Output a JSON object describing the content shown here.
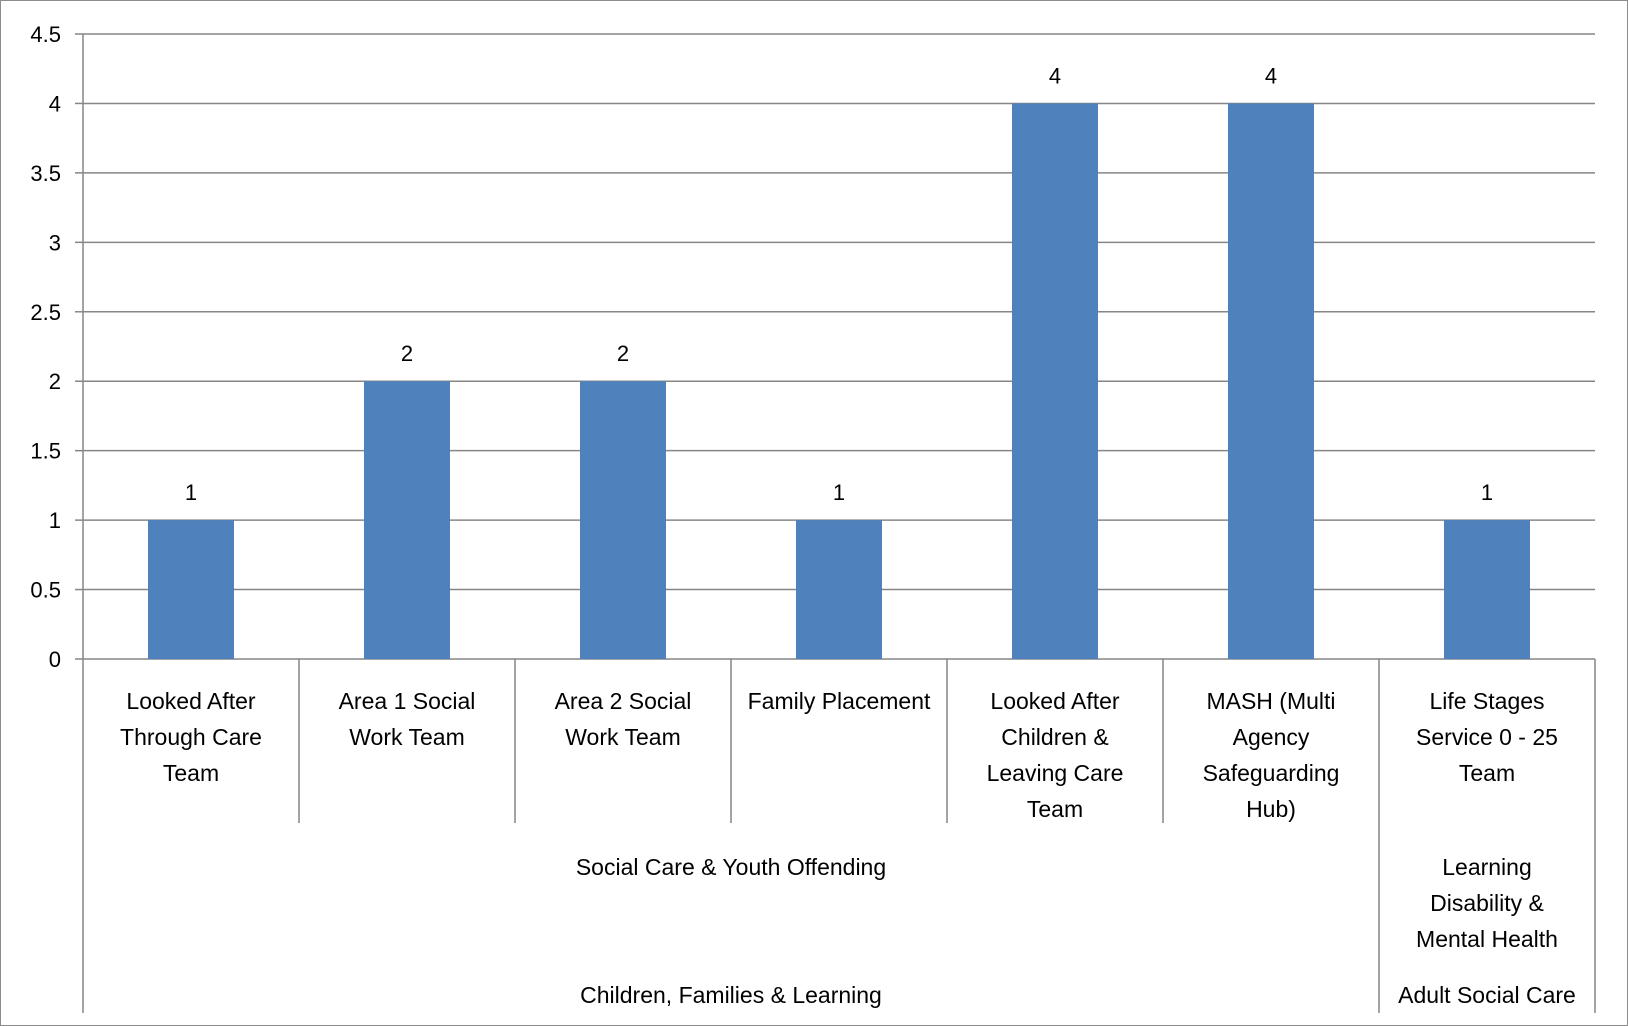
{
  "chart_data": {
    "type": "bar",
    "title": "",
    "xlabel": "",
    "ylabel": "",
    "ylim": [
      0,
      4.5
    ],
    "yticks": [
      "0",
      "0.5",
      "1",
      "1.5",
      "2",
      "2.5",
      "3",
      "3.5",
      "4",
      "4.5"
    ],
    "grid": true,
    "legend": "none",
    "bar_color": "#4f81bd",
    "categories": [
      "Looked After Through Care Team",
      "Area 1 Social Work Team",
      "Area 2 Social Work Team",
      "Family Placement",
      "Looked After Children & Leaving Care Team",
      "MASH (Multi Agency Safeguarding Hub)",
      "Life Stages Service 0 - 25 Team"
    ],
    "category_lines": [
      [
        "Looked After",
        "Through Care",
        "Team"
      ],
      [
        "Area 1 Social",
        "Work Team"
      ],
      [
        "Area 2 Social",
        "Work Team"
      ],
      [
        "Family Placement"
      ],
      [
        "Looked After",
        "Children &",
        "Leaving Care",
        "Team"
      ],
      [
        "MASH (Multi",
        "Agency",
        "Safeguarding",
        "Hub)"
      ],
      [
        "Life Stages",
        "Service 0 - 25",
        "Team"
      ]
    ],
    "values": [
      1,
      2,
      2,
      1,
      4,
      4,
      1
    ],
    "data_labels": [
      "1",
      "2",
      "2",
      "1",
      "4",
      "4",
      "1"
    ],
    "group_level_1": [
      {
        "lines": [
          "Social Care & Youth Offending"
        ],
        "start": 0,
        "end": 5
      },
      {
        "lines": [
          "Learning",
          "Disability &",
          "Mental Health"
        ],
        "start": 6,
        "end": 6
      }
    ],
    "group_level_2": [
      {
        "lines": [
          "Children, Families & Learning"
        ],
        "start": 0,
        "end": 5
      },
      {
        "lines": [
          "Adult Social Care"
        ],
        "start": 6,
        "end": 6
      }
    ]
  }
}
